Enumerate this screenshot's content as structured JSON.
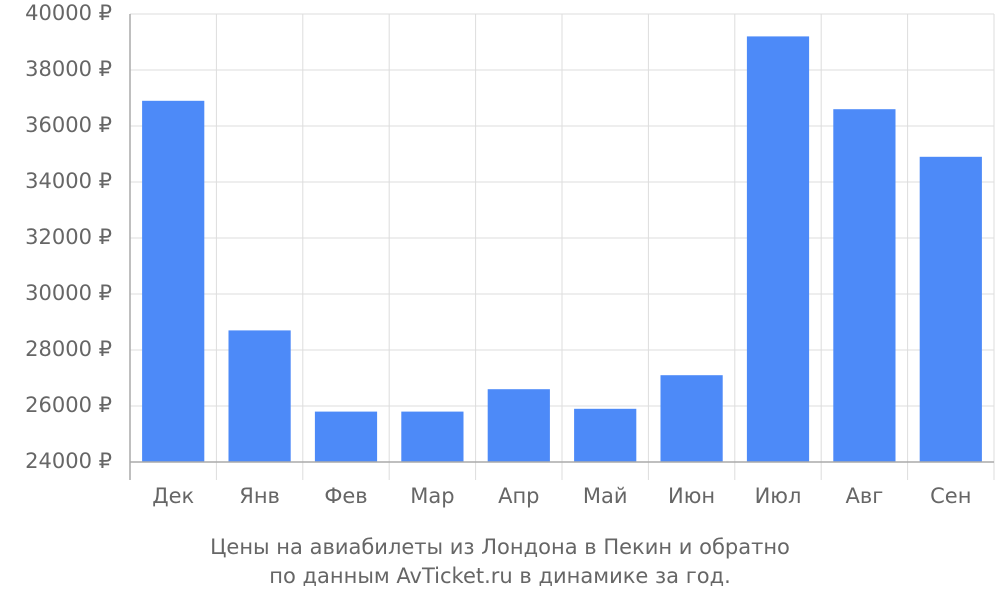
{
  "chart_data": {
    "type": "bar",
    "title": "Цены на авиабилеты из Лондона в Пекин и обратно",
    "subtitle": "по данным AvTicket.ru в динамике за год.",
    "categories": [
      "Дек",
      "Янв",
      "Фев",
      "Мар",
      "Апр",
      "Май",
      "Июн",
      "Июл",
      "Авг",
      "Сен"
    ],
    "values": [
      36900,
      28700,
      25800,
      25800,
      26600,
      25900,
      27100,
      39200,
      36600,
      34900
    ],
    "color": "#4d8af8",
    "ylim": [
      24000,
      40000
    ],
    "yticks": [
      {
        "value": 24000,
        "label": "24000 ₽"
      },
      {
        "value": 26000,
        "label": "26000 ₽"
      },
      {
        "value": 28000,
        "label": "28000 ₽"
      },
      {
        "value": 30000,
        "label": "30000 ₽"
      },
      {
        "value": 32000,
        "label": "32000 ₽"
      },
      {
        "value": 34000,
        "label": "34000 ₽"
      },
      {
        "value": 36000,
        "label": "36000 ₽"
      },
      {
        "value": 38000,
        "label": "38000 ₽"
      },
      {
        "value": 40000,
        "label": "40000 ₽"
      }
    ],
    "grid": true
  }
}
